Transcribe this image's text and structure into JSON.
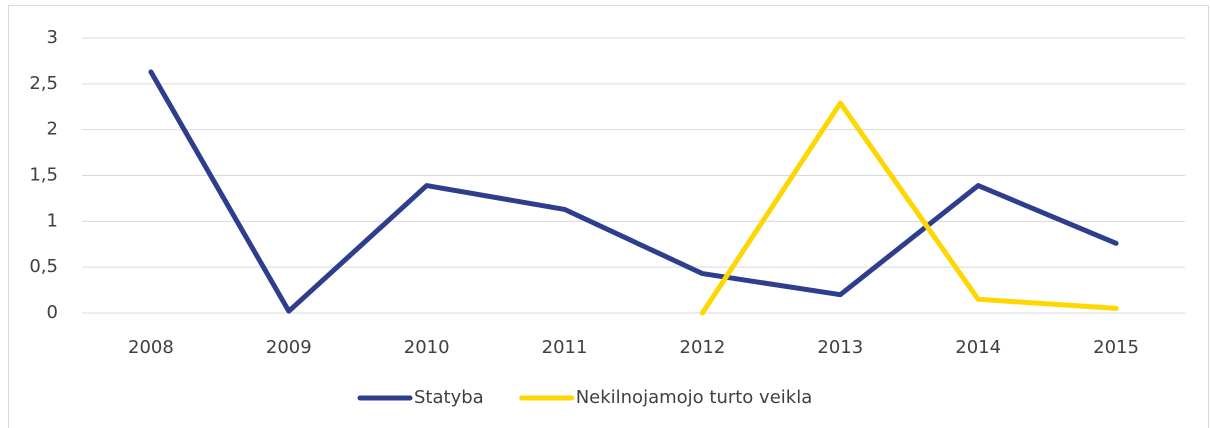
{
  "chart_data": {
    "type": "line",
    "categories": [
      "2008",
      "2009",
      "2010",
      "2011",
      "2012",
      "2013",
      "2014",
      "2015"
    ],
    "series": [
      {
        "name": "Statyba",
        "color": "#2e3d8c",
        "values": [
          2.63,
          0.02,
          1.39,
          1.13,
          0.43,
          0.2,
          1.39,
          0.76
        ]
      },
      {
        "name": "Nekilnojamojo turto veikla",
        "color": "#ffd700",
        "values": [
          null,
          null,
          null,
          null,
          0.0,
          2.29,
          0.15,
          0.05
        ]
      }
    ],
    "ylim": [
      0,
      3
    ],
    "yticks": [
      0,
      {
        "value": 0.5,
        "label": "0,5"
      },
      1,
      {
        "value": 1.5,
        "label": "1,5"
      },
      2,
      {
        "value": 2.5,
        "label": "2,5"
      },
      3
    ],
    "grid": true,
    "legend": "bottom"
  }
}
